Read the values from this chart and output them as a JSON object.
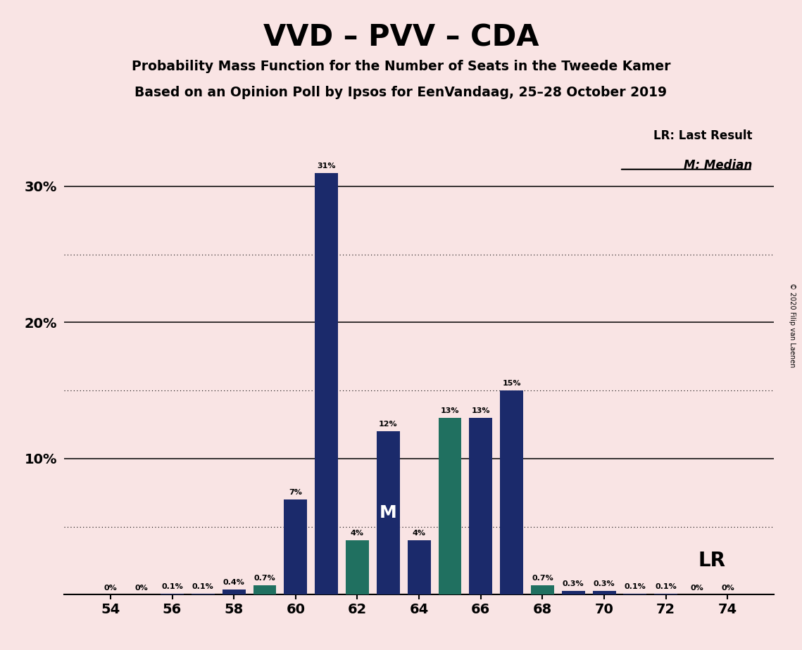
{
  "title": "VVD – PVV – CDA",
  "subtitle1": "Probability Mass Function for the Number of Seats in the Tweede Kamer",
  "subtitle2": "Based on an Opinion Poll by Ipsos for EenVandaag, 25–28 October 2019",
  "copyright": "© 2020 Filip van Laenen",
  "seats": [
    54,
    55,
    56,
    57,
    58,
    59,
    60,
    61,
    62,
    63,
    64,
    65,
    66,
    67,
    68,
    69,
    70,
    71,
    72,
    73,
    74
  ],
  "values": [
    0.0,
    0.0,
    0.1,
    0.1,
    0.4,
    0.7,
    7.0,
    31.0,
    4.0,
    12.0,
    4.0,
    13.0,
    13.0,
    15.0,
    0.7,
    0.3,
    0.3,
    0.1,
    0.1,
    0.0,
    0.0
  ],
  "labels": [
    "0%",
    "0%",
    "0.1%",
    "0.1%",
    "0.4%",
    "0.7%",
    "7%",
    "31%",
    "4%",
    "12%",
    "4%",
    "13%",
    "13%",
    "15%",
    "0.7%",
    "0.3%",
    "0.3%",
    "0.1%",
    "0.1%",
    "0%",
    "0%"
  ],
  "bar_colors": [
    "#1b2a6b",
    "#1b2a6b",
    "#1b2a6b",
    "#1b2a6b",
    "#1b2a6b",
    "#207060",
    "#1b2a6b",
    "#1b2a6b",
    "#207060",
    "#1b2a6b",
    "#1b2a6b",
    "#207060",
    "#1b2a6b",
    "#1b2a6b",
    "#207060",
    "#1b2a6b",
    "#1b2a6b",
    "#1b2a6b",
    "#1b2a6b",
    "#1b2a6b",
    "#1b2a6b"
  ],
  "median_seat": 63,
  "background_color": "#f9e4e4",
  "ylim": [
    0,
    35
  ],
  "solid_yticks": [
    10,
    20,
    30
  ],
  "dotted_yticks": [
    5,
    15,
    25
  ],
  "xticks": [
    54,
    56,
    58,
    60,
    62,
    64,
    66,
    68,
    70,
    72,
    74
  ],
  "lr_x": 73.5,
  "lr_y": 2.5,
  "legend_lr_text": "LR: Last Result",
  "legend_m_text": "M: Median"
}
